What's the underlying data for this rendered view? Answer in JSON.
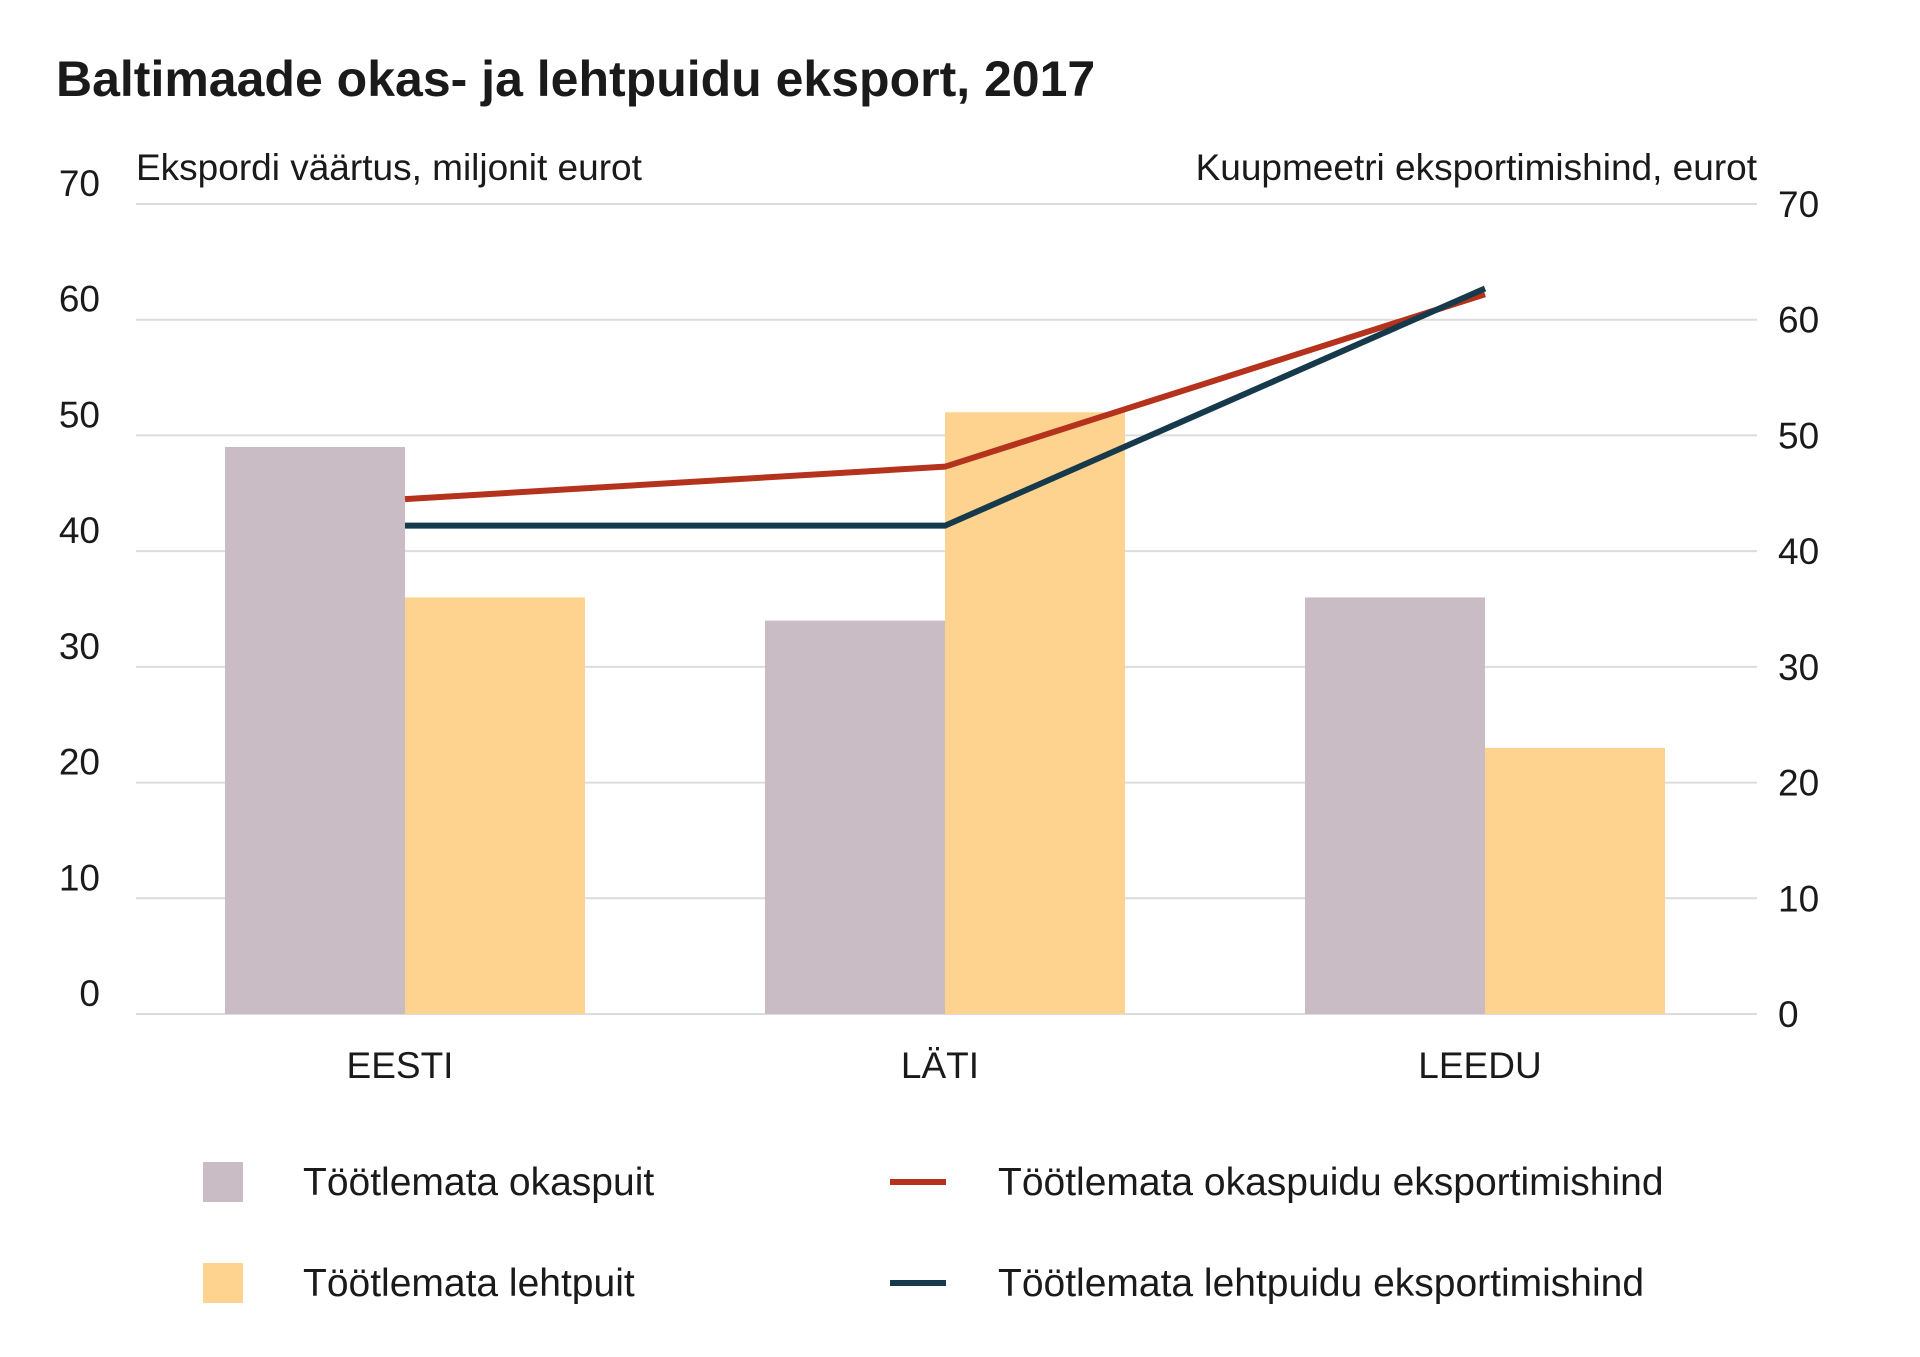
{
  "chart_data": {
    "type": "bar",
    "title": "Baltimaade okas- ja lehtpuidu eksport, 2017",
    "ylabel_left": "Ekspordi väärtus, miljonit eurot",
    "ylabel_right": "Kuupmeetri eksportimishind, eurot",
    "categories": [
      "EESTI",
      "LÄTI",
      "LEEDU"
    ],
    "ylim_left": [
      0,
      70
    ],
    "ylim_right": [
      0,
      70
    ],
    "yticks_left": [
      0,
      10,
      20,
      30,
      40,
      50,
      60,
      70
    ],
    "yticks_right": [
      0,
      10,
      20,
      30,
      40,
      50,
      60,
      70
    ],
    "grid": true,
    "legend_placement": "bottom",
    "bar_series": [
      {
        "name": "Töötlemata okaspuit",
        "values": [
          49,
          34,
          36
        ],
        "color": "#c9bcc4",
        "axis": "left"
      },
      {
        "name": "Töötlemata lehtpuit",
        "values": [
          36,
          52,
          23
        ],
        "color": "#fdd38f",
        "axis": "left"
      }
    ],
    "line_series": [
      {
        "name": "Töötlemata okaspuidu eksportimishind",
        "values": [
          44.5,
          47.3,
          62.2
        ],
        "color": "#b5321c",
        "axis": "right"
      },
      {
        "name": "Töötlemata lehtpuidu eksportimishind",
        "values": [
          42.2,
          42.2,
          62.7
        ],
        "color": "#163a4c",
        "axis": "right"
      }
    ]
  }
}
